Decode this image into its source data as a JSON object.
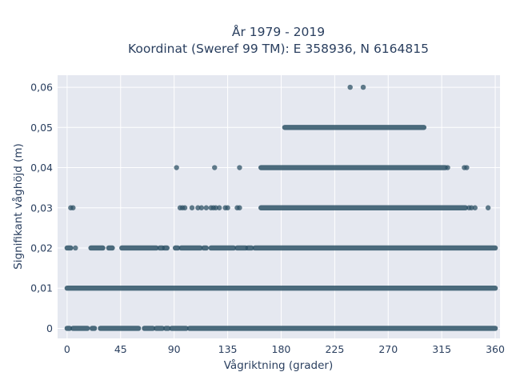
{
  "chart_data": {
    "type": "scatter",
    "title_line1": "År 1979 - 2019",
    "title_line2": "Koordinat (Sweref 99 TM): E 358936, N 6164815",
    "xlabel": "Vågriktning (grader)",
    "ylabel": "Signifikant våghöjd (m)",
    "xlim": [
      -8,
      364
    ],
    "ylim": [
      -0.0025,
      0.063
    ],
    "x_ticks": [
      0,
      45,
      90,
      135,
      180,
      225,
      270,
      315,
      360
    ],
    "x_tick_labels": [
      "0",
      "45",
      "90",
      "135",
      "180",
      "225",
      "270",
      "315",
      "360"
    ],
    "y_ticks": [
      0,
      0.01,
      0.02,
      0.03,
      0.04,
      0.05,
      0.06
    ],
    "y_tick_labels": [
      "0",
      "0,01",
      "0,02",
      "0,03",
      "0,04",
      "0,05",
      "0,06"
    ],
    "grid": true,
    "colors": {
      "marker": "#2e5266",
      "plot_bg": "#e5e8f0",
      "grid": "#ffffff",
      "text": "#2a3f5f"
    },
    "series": [
      {
        "bands": [
          {
            "y": 0,
            "ranges": [
              [
                0,
                2
              ],
              [
                5,
                17
              ],
              [
                21,
                23
              ],
              [
                28,
                60
              ],
              [
                65,
                72
              ],
              [
                75,
                80
              ],
              [
                83,
                85
              ],
              [
                88,
                100
              ],
              [
                103,
                360
              ]
            ]
          },
          {
            "y": 0.01,
            "ranges": [
              [
                0,
                360
              ]
            ]
          },
          {
            "y": 0.02,
            "ranges": [
              [
                0,
                3
              ],
              [
                20,
                30
              ],
              [
                35,
                38
              ],
              [
                46,
                75
              ],
              [
                78,
                80
              ],
              [
                82,
                84
              ],
              [
                91,
                93
              ],
              [
                96,
                112
              ],
              [
                115,
                117
              ],
              [
                121,
                140
              ],
              [
                143,
                150
              ],
              [
                152,
                155
              ],
              [
                158,
                360
              ]
            ]
          },
          {
            "y": 0.03,
            "ranges": [
              [
                163,
                335
              ]
            ]
          },
          {
            "y": 0.04,
            "ranges": [
              [
                163,
                318
              ]
            ]
          },
          {
            "y": 0.05,
            "ranges": [
              [
                183,
                300
              ]
            ]
          }
        ],
        "points": [
          [
            7,
            0.02
          ],
          [
            3,
            0.03
          ],
          [
            5,
            0.03
          ],
          [
            95,
            0.03
          ],
          [
            97,
            0.03
          ],
          [
            99,
            0.03
          ],
          [
            105,
            0.03
          ],
          [
            110,
            0.03
          ],
          [
            113,
            0.03
          ],
          [
            117,
            0.03
          ],
          [
            121,
            0.03
          ],
          [
            123,
            0.03
          ],
          [
            125,
            0.03
          ],
          [
            128,
            0.03
          ],
          [
            133,
            0.03
          ],
          [
            135,
            0.03
          ],
          [
            143,
            0.03
          ],
          [
            145,
            0.03
          ],
          [
            338,
            0.03
          ],
          [
            340,
            0.03
          ],
          [
            343,
            0.03
          ],
          [
            354,
            0.03
          ],
          [
            92,
            0.04
          ],
          [
            124,
            0.04
          ],
          [
            145,
            0.04
          ],
          [
            320,
            0.04
          ],
          [
            334,
            0.04
          ],
          [
            336,
            0.04
          ],
          [
            238,
            0.06
          ],
          [
            249,
            0.06
          ]
        ]
      }
    ]
  }
}
